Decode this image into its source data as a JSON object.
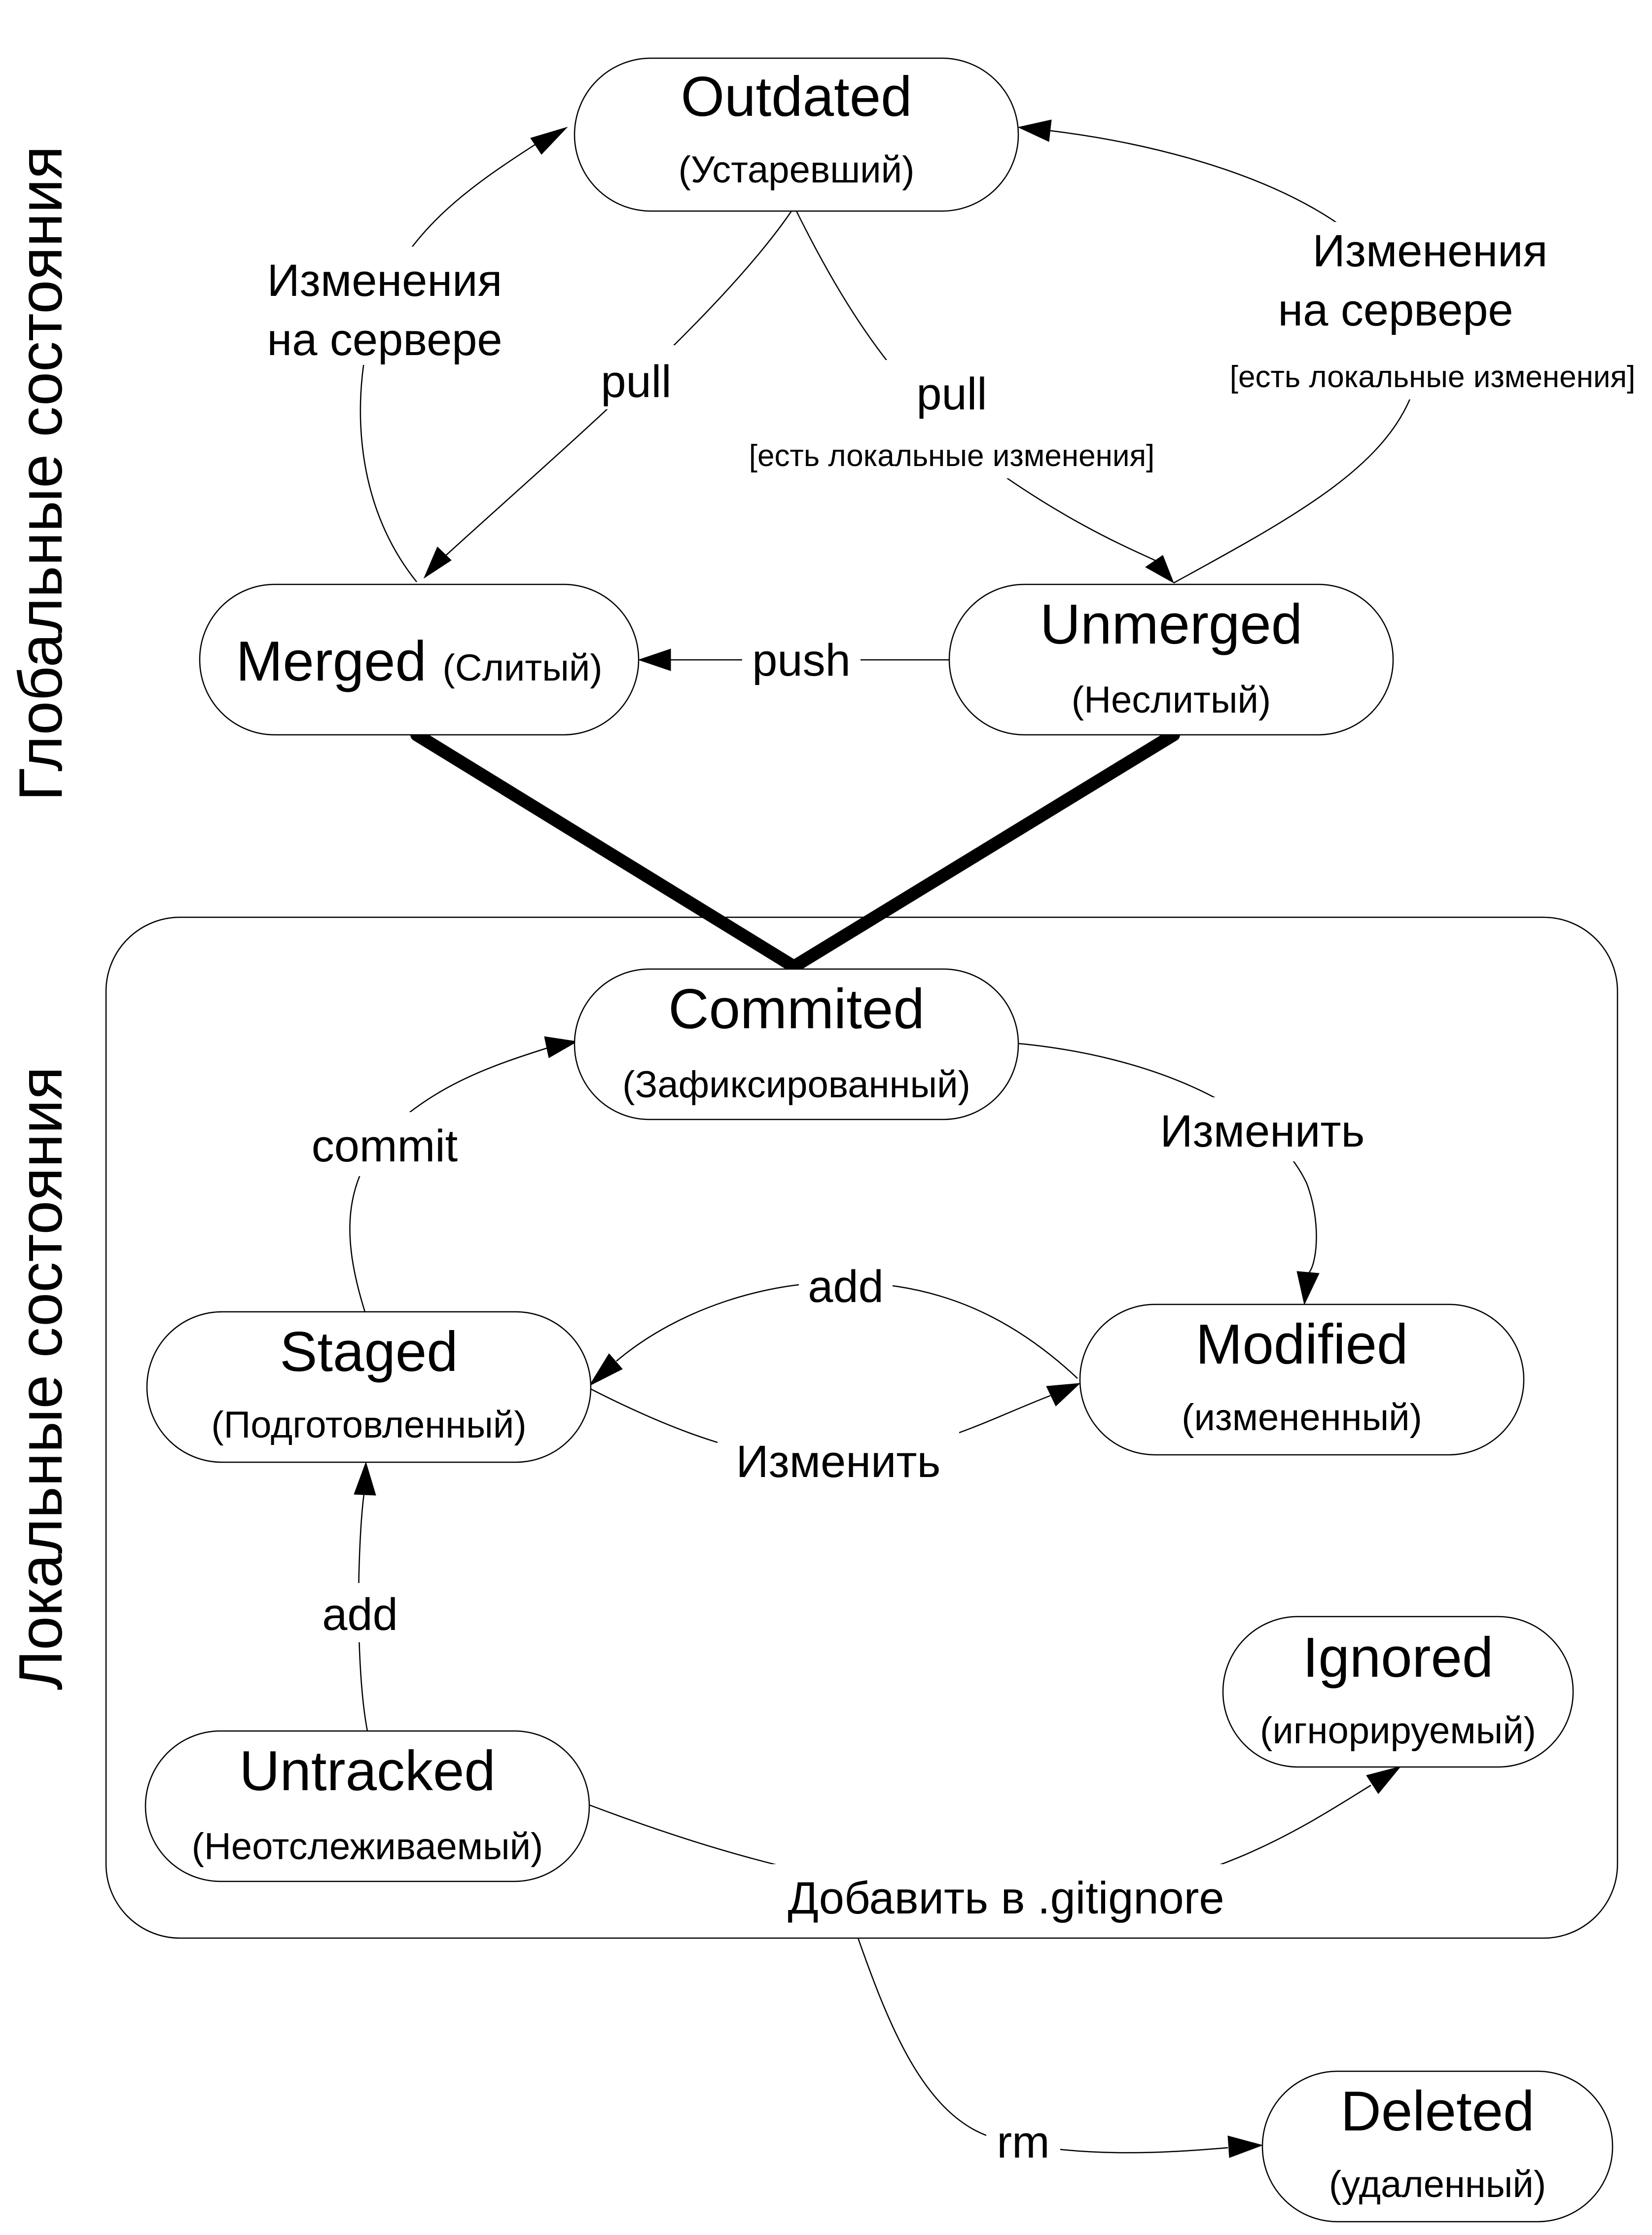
{
  "side_labels": {
    "global": "Глобальные состояния",
    "local": "Локальные состояния"
  },
  "states": {
    "outdated": {
      "name": "Outdated",
      "sub": "(Устаревший)"
    },
    "merged": {
      "name": "Merged",
      "sub": "(Слитый)"
    },
    "unmerged": {
      "name": "Unmerged",
      "sub": "(Неслитый)"
    },
    "commited": {
      "name": "Commited",
      "sub": "(Зафиксированный)"
    },
    "staged": {
      "name": "Staged",
      "sub": "(Подготовленный)"
    },
    "modified": {
      "name": "Modified",
      "sub": "(измененный)"
    },
    "untracked": {
      "name": "Untracked",
      "sub": "(Неотслеживаемый)"
    },
    "ignored": {
      "name": "Ignored",
      "sub": "(игнорируемый)"
    },
    "deleted": {
      "name": "Deleted",
      "sub": "(удаленный)"
    }
  },
  "transitions": {
    "merged_to_outdated": {
      "line1": "Изменения",
      "line2": "на сервере"
    },
    "unmerged_to_outdated": {
      "line1": "Изменения",
      "line2": "на сервере",
      "guard": "[есть локальные изменения]"
    },
    "outdated_to_merged": {
      "label": "pull"
    },
    "outdated_to_unmerged": {
      "label": "pull",
      "guard": "[есть локальные изменения]"
    },
    "unmerged_to_merged": {
      "label": "push"
    },
    "staged_to_commited": {
      "label": "commit"
    },
    "commited_to_modified": {
      "label": "Изменить"
    },
    "modified_to_staged": {
      "label": "add"
    },
    "staged_to_modified": {
      "label": "Изменить"
    },
    "untracked_to_staged": {
      "label": "add"
    },
    "untracked_to_ignored": {
      "label": "Добавить в .gitignore"
    },
    "local_to_deleted": {
      "label": "rm"
    }
  }
}
